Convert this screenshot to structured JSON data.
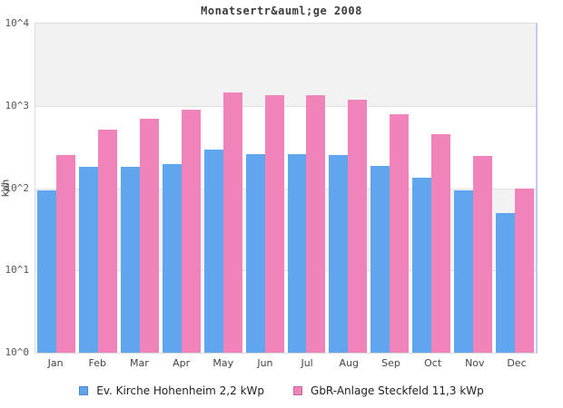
{
  "chart_data": {
    "type": "bar",
    "title": "Monatsertr&auml;ge 2008",
    "ylabel": "kWh",
    "xlabel": "",
    "scale": "log",
    "ylim": [
      1,
      10000
    ],
    "yticks": [
      "10^4",
      "10^3",
      "10^2",
      "10^1",
      "10^0"
    ],
    "grid": "horizontal decade gridlines with alternating gray/white decade bands",
    "legend_position": "bottom",
    "categories": [
      "Jan",
      "Feb",
      "Mar",
      "Apr",
      "May",
      "Jun",
      "Jul",
      "Aug",
      "Sep",
      "Oct",
      "Nov",
      "Dec"
    ],
    "series": [
      {
        "name": "Ev. Kirche Hohenheim 2,2 kWp",
        "short": "kirche",
        "color": "#60a6ee",
        "swatch_border": "#4c86c8",
        "values": [
          95,
          180,
          180,
          195,
          295,
          260,
          260,
          250,
          185,
          135,
          95,
          50
        ]
      },
      {
        "name": "GbR-Anlage Steckfeld 11,3 kWp",
        "short": "gbr",
        "color": "#f083ba",
        "swatch_border": "#c9689a",
        "values": [
          250,
          510,
          690,
          900,
          1450,
          1350,
          1350,
          1190,
          800,
          455,
          245,
          100
        ]
      }
    ]
  }
}
